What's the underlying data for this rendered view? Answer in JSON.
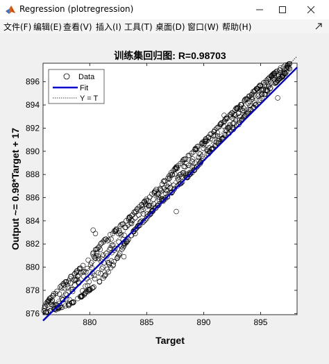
{
  "window": {
    "title": "Regression (plotregression)",
    "icon": "matlab-logo-icon"
  },
  "menu": {
    "items": [
      {
        "label": "文件(F)"
      },
      {
        "label": "编辑(E)"
      },
      {
        "label": "查看(V)"
      },
      {
        "label": "插入(I)"
      },
      {
        "label": "工具(T)"
      },
      {
        "label": "桌面(D)"
      },
      {
        "label": "窗口(W)"
      },
      {
        "label": "帮助(H)"
      }
    ]
  },
  "chart_data": {
    "type": "scatter",
    "title": "训练集回归图: R=0.98703",
    "xlabel": "Target",
    "ylabel": "Output ~= 0.98*Target + 17",
    "xlim": [
      875.9,
      898.2
    ],
    "ylim": [
      875.9,
      897.6
    ],
    "xticks": [
      880,
      885,
      890,
      895
    ],
    "yticks": [
      876,
      878,
      880,
      882,
      884,
      886,
      888,
      890,
      892,
      894,
      896
    ],
    "grid": false,
    "legend": {
      "placement": "top-left",
      "entries": [
        "Data",
        "Fit",
        "Y = T"
      ]
    },
    "fit": {
      "slope": 0.98,
      "intercept": 17
    },
    "colors": {
      "data": "#000000",
      "fit": "#0000cc",
      "identity": "#000000"
    },
    "series": [
      {
        "name": "Data",
        "band_x": [
          876,
          877,
          878,
          879,
          880,
          881,
          882,
          883,
          884,
          885,
          886,
          887,
          888,
          889,
          890,
          891,
          892,
          893,
          894,
          895,
          896,
          897,
          897.6
        ],
        "band_low": [
          876.0,
          876.3,
          876.6,
          877.2,
          878.0,
          878.8,
          880.0,
          881.8,
          883.2,
          884.2,
          885.3,
          886.2,
          887.2,
          888.1,
          889.3,
          890.4,
          891.3,
          892.2,
          893.4,
          894.4,
          895.6,
          896.5,
          897.0
        ],
        "band_high": [
          876.8,
          877.9,
          878.9,
          879.8,
          880.9,
          882.1,
          883.0,
          883.9,
          884.9,
          885.9,
          886.9,
          888.0,
          889.1,
          890.0,
          890.9,
          891.9,
          892.9,
          893.9,
          894.8,
          895.8,
          896.6,
          897.4,
          897.6
        ],
        "outliers": [
          [
            880.3,
            883.2
          ],
          [
            880.5,
            882.9
          ],
          [
            883.0,
            880.9
          ],
          [
            884.0,
            882.9
          ],
          [
            887.6,
            884.8
          ],
          [
            891.8,
            893.1
          ],
          [
            893.5,
            892.9
          ],
          [
            896.5,
            894.6
          ],
          [
            879.2,
            879.6
          ],
          [
            878.5,
            877.9
          ]
        ]
      }
    ]
  }
}
